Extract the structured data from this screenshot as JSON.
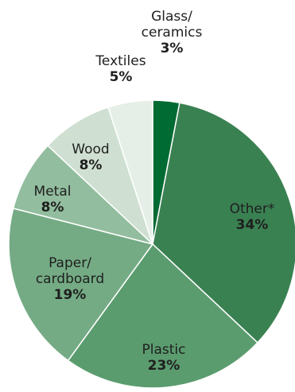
{
  "chart_data": {
    "type": "pie",
    "slices": [
      {
        "label_lines": [
          "Glass/",
          "ceramics"
        ],
        "value": 3,
        "pct_label": "3%",
        "color": "#006b33"
      },
      {
        "label_lines": [
          "Other*"
        ],
        "value": 34,
        "pct_label": "34%",
        "color": "#3a8152"
      },
      {
        "label_lines": [
          "Plastic"
        ],
        "value": 23,
        "pct_label": "23%",
        "color": "#5b9c6f"
      },
      {
        "label_lines": [
          "Paper/",
          "cardboard"
        ],
        "value": 19,
        "pct_label": "19%",
        "color": "#74ab84"
      },
      {
        "label_lines": [
          "Metal"
        ],
        "value": 8,
        "pct_label": "8%",
        "color": "#92bd9e"
      },
      {
        "label_lines": [
          "Wood"
        ],
        "value": 8,
        "pct_label": "8%",
        "color": "#cfe0d2"
      },
      {
        "label_lines": [
          "Textiles"
        ],
        "value": 5,
        "pct_label": "5%",
        "color": "#e6efe7"
      }
    ],
    "start_angle_deg": 0,
    "direction": "clockwise",
    "slice_border_color": "#ffffff"
  }
}
